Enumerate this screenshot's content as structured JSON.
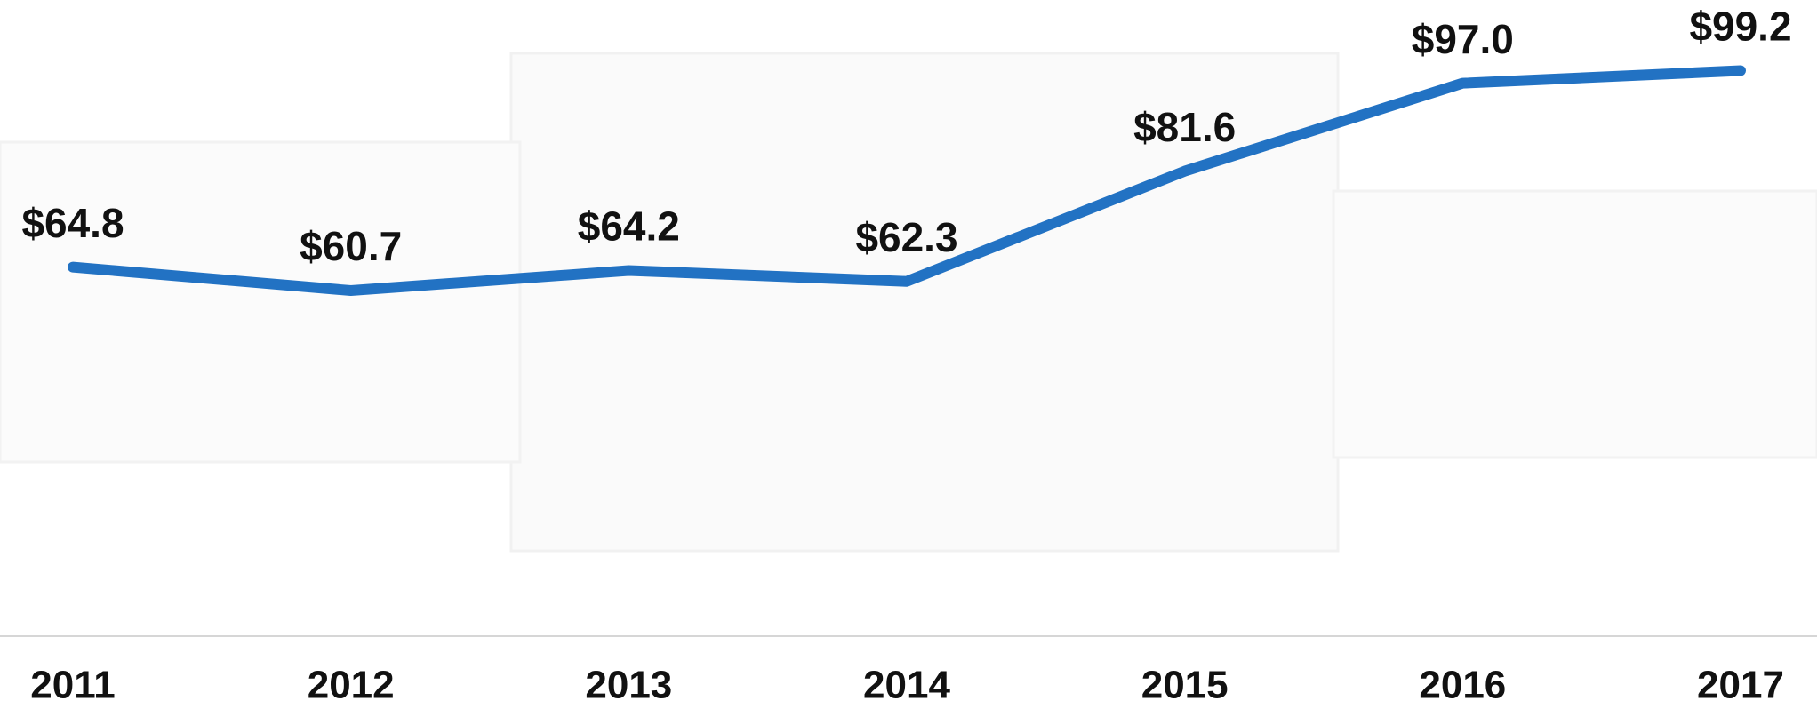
{
  "chart_data": {
    "type": "line",
    "categories": [
      "2011",
      "2012",
      "2013",
      "2014",
      "2015",
      "2016",
      "2017"
    ],
    "values": [
      64.8,
      60.7,
      64.2,
      62.3,
      81.6,
      97.0,
      99.2
    ],
    "value_labels": [
      "$64.8",
      "$60.7",
      "$64.2",
      "$62.3",
      "$81.6",
      "$97.0",
      "$99.2"
    ],
    "color": "#2272c3"
  }
}
